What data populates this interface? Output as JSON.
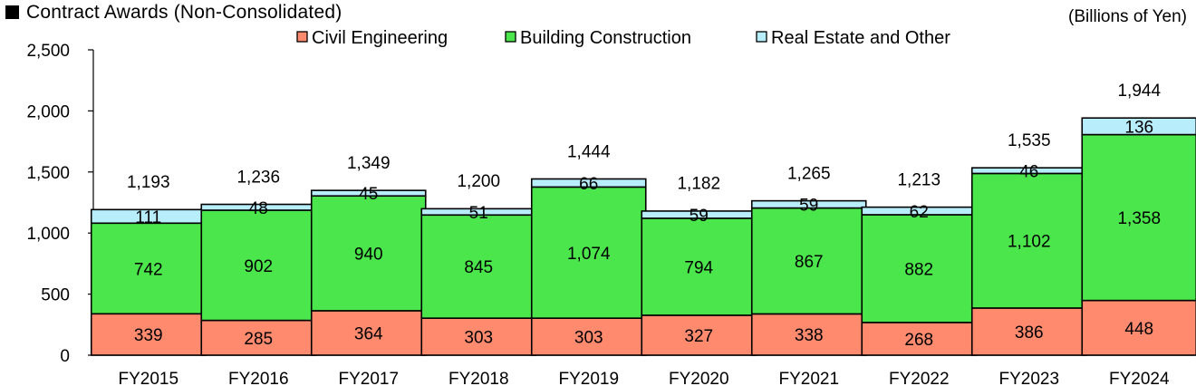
{
  "chart_data": {
    "type": "bar",
    "stacked": true,
    "title": "Contract Awards (Non-Consolidated)",
    "unit": "(Billions of Yen)",
    "xlabel": "",
    "ylabel": "",
    "ylim": [
      0,
      2500
    ],
    "yticks": [
      0,
      500,
      1000,
      1500,
      2000,
      2500
    ],
    "ytick_labels": [
      "0",
      "500",
      "1,000",
      "1,500",
      "2,000",
      "2,500"
    ],
    "legend_position": "top",
    "categories": [
      "FY2015",
      "FY2016",
      "FY2017",
      "FY2018",
      "FY2019",
      "FY2020",
      "FY2021",
      "FY2022",
      "FY2023",
      "FY2024"
    ],
    "series": [
      {
        "name": "Civil Engineering",
        "color": "#ff8a6e",
        "values": [
          339,
          285,
          364,
          303,
          303,
          327,
          338,
          268,
          386,
          448
        ],
        "labels": [
          "339",
          "285",
          "364",
          "303",
          "303",
          "327",
          "338",
          "268",
          "386",
          "448"
        ]
      },
      {
        "name": "Building Construction",
        "color": "#4be64b",
        "values": [
          742,
          902,
          940,
          845,
          1074,
          794,
          867,
          882,
          1102,
          1358
        ],
        "labels": [
          "742",
          "902",
          "940",
          "845",
          "1,074",
          "794",
          "867",
          "882",
          "1,102",
          "1,358"
        ]
      },
      {
        "name": "Real Estate and Other",
        "color": "#b8eefc",
        "values": [
          111,
          48,
          45,
          51,
          66,
          59,
          59,
          62,
          46,
          136
        ],
        "labels": [
          "111",
          "48",
          "45",
          "51",
          "66",
          "59",
          "59",
          "62",
          "46",
          "136"
        ]
      }
    ],
    "totals": [
      1193,
      1236,
      1349,
      1200,
      1444,
      1182,
      1265,
      1213,
      1535,
      1944
    ],
    "total_labels": [
      "1,193",
      "1,236",
      "1,349",
      "1,200",
      "1,444",
      "1,182",
      "1,265",
      "1,213",
      "1,535",
      "1,944"
    ]
  }
}
